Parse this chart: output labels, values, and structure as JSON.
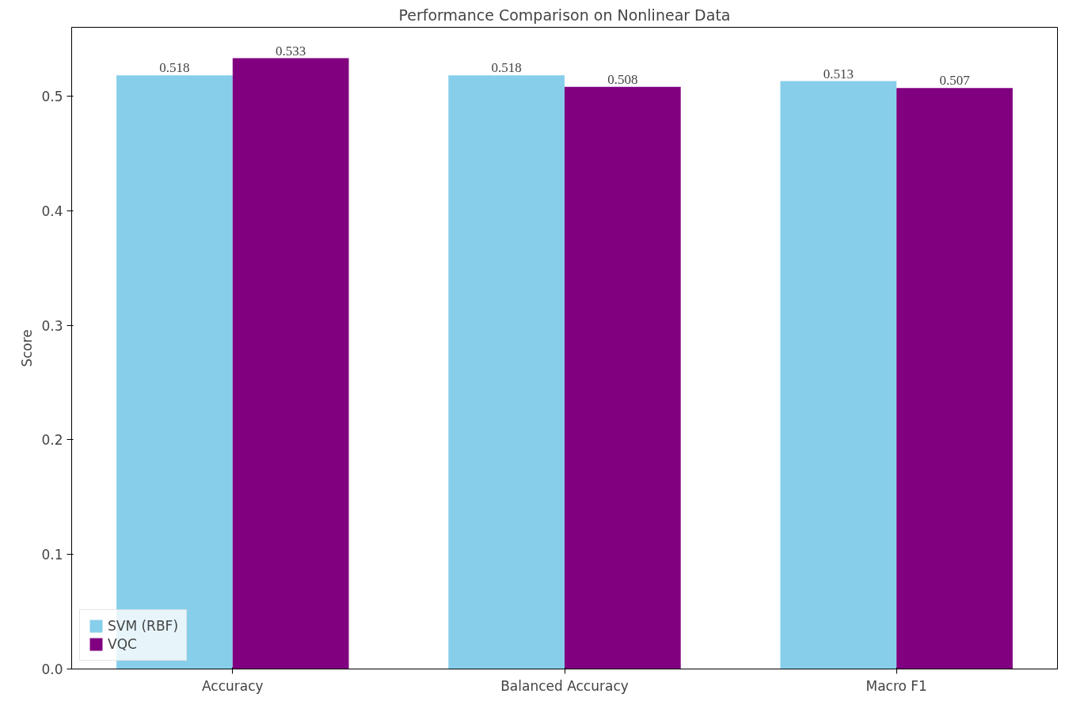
{
  "chart_data": {
    "type": "bar",
    "title": "Performance Comparison on Nonlinear Data",
    "ylabel": "Score",
    "categories": [
      "Accuracy",
      "Balanced Accuracy",
      "Macro F1"
    ],
    "series": [
      {
        "name": "SVM (RBF)",
        "color": "#87ceeb",
        "values": [
          0.518,
          0.518,
          0.513
        ]
      },
      {
        "name": "VQC",
        "color": "#800080",
        "values": [
          0.533,
          0.508,
          0.507
        ]
      }
    ],
    "ylim": [
      0,
      0.56
    ],
    "yticks": [
      {
        "value": 0,
        "label": "0.0"
      },
      0.1,
      0.2,
      0.3,
      0.4,
      0.5
    ],
    "data_labels": true,
    "grid": false,
    "legend": "bottom left"
  }
}
